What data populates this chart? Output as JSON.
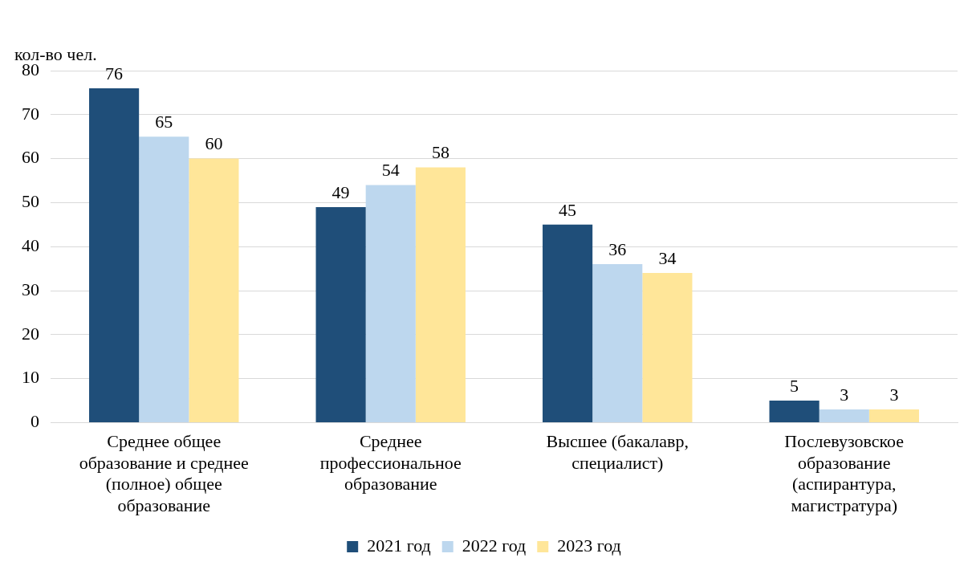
{
  "chart_data": {
    "type": "bar",
    "ylabel": "кол-во чел.",
    "categories": [
      "Среднее общее образование и среднее (полное) общее образование",
      "Среднее профессиональное образование",
      "Высшее (бакалавр, специалист)",
      "Послевузовское образование (аспирантура, магистратура)"
    ],
    "series": [
      {
        "name": "2021 год",
        "color": "#1f4e79",
        "values": [
          76,
          49,
          45,
          5
        ]
      },
      {
        "name": "2022 год",
        "color": "#bdd7ee",
        "values": [
          65,
          54,
          36,
          3
        ]
      },
      {
        "name": "2023 год",
        "color": "#ffe699",
        "values": [
          60,
          58,
          34,
          3
        ]
      }
    ],
    "ylim": [
      0,
      80
    ],
    "yticks": [
      0,
      10,
      20,
      30,
      40,
      50,
      60,
      70,
      80
    ],
    "grid": "y",
    "legend": "bottom",
    "data_labels": true
  }
}
